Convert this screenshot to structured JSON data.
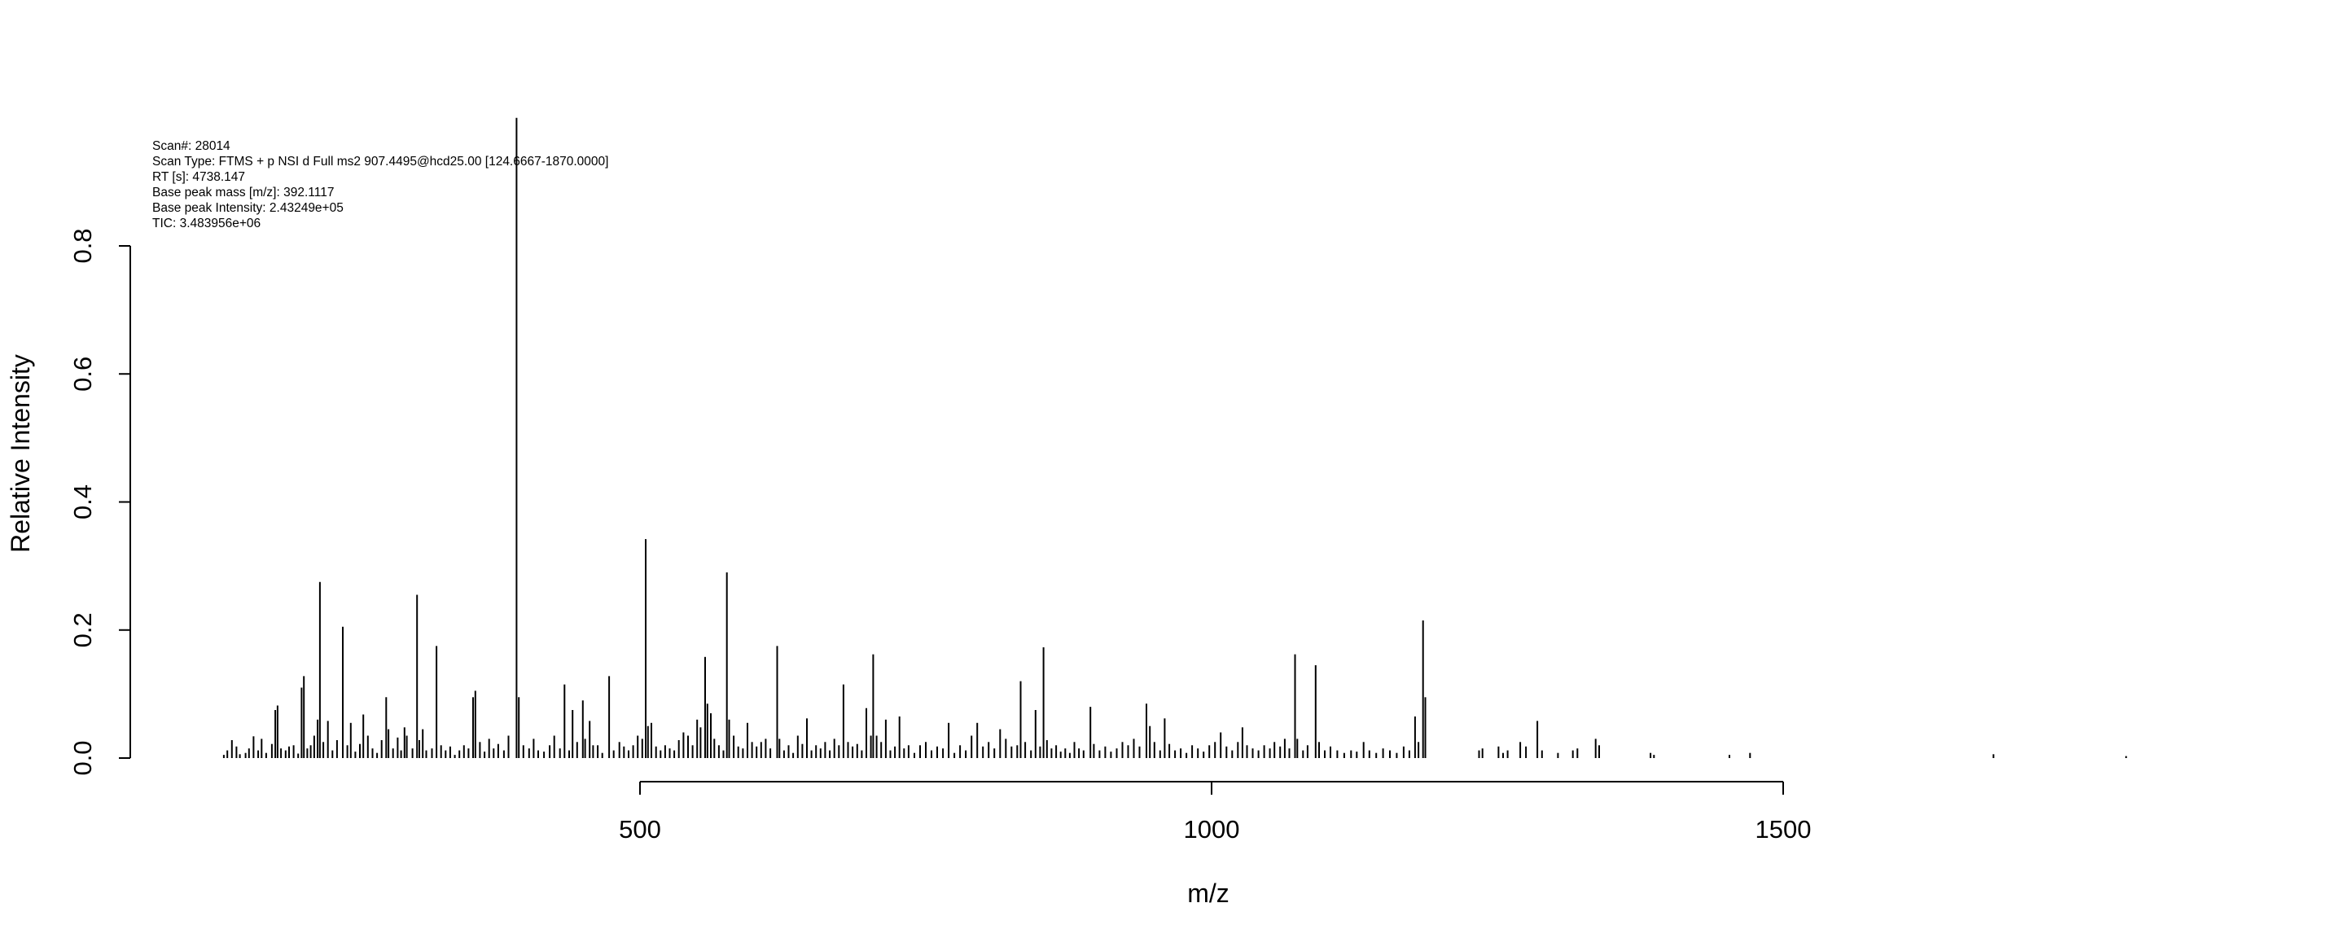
{
  "chart_data": {
    "type": "bar",
    "style": "spectrum-sticks",
    "xlabel": "m/z",
    "ylabel": "Relative Intensity",
    "xlim": [
      132,
      1905
    ],
    "ylim": [
      0,
      0.95
    ],
    "x_ticks": [
      500,
      1000,
      1500
    ],
    "y_ticks": [
      0.0,
      0.2,
      0.4,
      0.6,
      0.8
    ],
    "x_tick_labels": [
      "500",
      "1000",
      "1500"
    ],
    "y_tick_labels": [
      "0.0",
      "0.2",
      "0.4",
      "0.6",
      "0.8"
    ],
    "grid": false,
    "info": [
      {
        "label": "Scan#:",
        "value": "28014"
      },
      {
        "label": "Scan Type:",
        "value": "FTMS + p NSI d Full ms2 907.4495@hcd25.00 [124.6667-1870.0000]"
      },
      {
        "label": "RT [s]:",
        "value": "4738.147"
      },
      {
        "label": "Base peak mass [m/z]:",
        "value": "392.1117"
      },
      {
        "label": "Base peak Intensity:",
        "value": "2.43249e+05"
      },
      {
        "label": "TIC:",
        "value": "3.483956e+06"
      }
    ],
    "peaks": [
      [
        136,
        0.005
      ],
      [
        139,
        0.012
      ],
      [
        143,
        0.028
      ],
      [
        147,
        0.018
      ],
      [
        150,
        0.006
      ],
      [
        155,
        0.008
      ],
      [
        158,
        0.015
      ],
      [
        162,
        0.034
      ],
      [
        166,
        0.012
      ],
      [
        169,
        0.03
      ],
      [
        173,
        0.008
      ],
      [
        178,
        0.022
      ],
      [
        181,
        0.075
      ],
      [
        183,
        0.082
      ],
      [
        186,
        0.015
      ],
      [
        190,
        0.012
      ],
      [
        193,
        0.018
      ],
      [
        197,
        0.02
      ],
      [
        201,
        0.007
      ],
      [
        204,
        0.11
      ],
      [
        206,
        0.128
      ],
      [
        209,
        0.015
      ],
      [
        212,
        0.02
      ],
      [
        215,
        0.035
      ],
      [
        218,
        0.06
      ],
      [
        220,
        0.275
      ],
      [
        223,
        0.025
      ],
      [
        227,
        0.058
      ],
      [
        231,
        0.012
      ],
      [
        235,
        0.028
      ],
      [
        240,
        0.205
      ],
      [
        244,
        0.02
      ],
      [
        247,
        0.055
      ],
      [
        251,
        0.01
      ],
      [
        255,
        0.022
      ],
      [
        258,
        0.068
      ],
      [
        262,
        0.035
      ],
      [
        266,
        0.015
      ],
      [
        270,
        0.008
      ],
      [
        274,
        0.028
      ],
      [
        278,
        0.095
      ],
      [
        280,
        0.045
      ],
      [
        284,
        0.015
      ],
      [
        288,
        0.032
      ],
      [
        291,
        0.012
      ],
      [
        294,
        0.048
      ],
      [
        296,
        0.035
      ],
      [
        301,
        0.015
      ],
      [
        305,
        0.255
      ],
      [
        307,
        0.028
      ],
      [
        310,
        0.045
      ],
      [
        313,
        0.012
      ],
      [
        318,
        0.015
      ],
      [
        322,
        0.175
      ],
      [
        326,
        0.02
      ],
      [
        330,
        0.012
      ],
      [
        334,
        0.018
      ],
      [
        338,
        0.005
      ],
      [
        342,
        0.012
      ],
      [
        346,
        0.02
      ],
      [
        350,
        0.015
      ],
      [
        354,
        0.095
      ],
      [
        356,
        0.105
      ],
      [
        360,
        0.025
      ],
      [
        364,
        0.01
      ],
      [
        368,
        0.03
      ],
      [
        372,
        0.015
      ],
      [
        376,
        0.022
      ],
      [
        381,
        0.012
      ],
      [
        385,
        0.035
      ],
      [
        392,
        1.0
      ],
      [
        394,
        0.095
      ],
      [
        398,
        0.02
      ],
      [
        403,
        0.015
      ],
      [
        407,
        0.03
      ],
      [
        411,
        0.012
      ],
      [
        416,
        0.01
      ],
      [
        421,
        0.02
      ],
      [
        425,
        0.035
      ],
      [
        430,
        0.015
      ],
      [
        434,
        0.115
      ],
      [
        438,
        0.012
      ],
      [
        441,
        0.075
      ],
      [
        445,
        0.025
      ],
      [
        450,
        0.09
      ],
      [
        452,
        0.03
      ],
      [
        456,
        0.058
      ],
      [
        459,
        0.02
      ],
      [
        463,
        0.02
      ],
      [
        467,
        0.008
      ],
      [
        473,
        0.128
      ],
      [
        477,
        0.012
      ],
      [
        482,
        0.025
      ],
      [
        486,
        0.018
      ],
      [
        490,
        0.012
      ],
      [
        494,
        0.02
      ],
      [
        498,
        0.035
      ],
      [
        502,
        0.03
      ],
      [
        505,
        0.342
      ],
      [
        507,
        0.05
      ],
      [
        510,
        0.055
      ],
      [
        514,
        0.018
      ],
      [
        518,
        0.012
      ],
      [
        522,
        0.02
      ],
      [
        526,
        0.015
      ],
      [
        530,
        0.012
      ],
      [
        534,
        0.028
      ],
      [
        538,
        0.04
      ],
      [
        542,
        0.035
      ],
      [
        546,
        0.02
      ],
      [
        550,
        0.06
      ],
      [
        553,
        0.048
      ],
      [
        557,
        0.158
      ],
      [
        559,
        0.085
      ],
      [
        562,
        0.07
      ],
      [
        565,
        0.03
      ],
      [
        569,
        0.02
      ],
      [
        573,
        0.012
      ],
      [
        576,
        0.29
      ],
      [
        578,
        0.06
      ],
      [
        582,
        0.035
      ],
      [
        586,
        0.018
      ],
      [
        590,
        0.015
      ],
      [
        594,
        0.055
      ],
      [
        598,
        0.025
      ],
      [
        602,
        0.018
      ],
      [
        606,
        0.025
      ],
      [
        610,
        0.03
      ],
      [
        614,
        0.015
      ],
      [
        620,
        0.175
      ],
      [
        622,
        0.03
      ],
      [
        626,
        0.012
      ],
      [
        630,
        0.02
      ],
      [
        634,
        0.008
      ],
      [
        638,
        0.035
      ],
      [
        642,
        0.022
      ],
      [
        646,
        0.062
      ],
      [
        650,
        0.012
      ],
      [
        654,
        0.02
      ],
      [
        658,
        0.015
      ],
      [
        662,
        0.025
      ],
      [
        666,
        0.012
      ],
      [
        670,
        0.03
      ],
      [
        674,
        0.02
      ],
      [
        678,
        0.115
      ],
      [
        682,
        0.025
      ],
      [
        686,
        0.018
      ],
      [
        690,
        0.022
      ],
      [
        694,
        0.012
      ],
      [
        698,
        0.078
      ],
      [
        702,
        0.035
      ],
      [
        704,
        0.162
      ],
      [
        707,
        0.035
      ],
      [
        711,
        0.025
      ],
      [
        715,
        0.06
      ],
      [
        719,
        0.012
      ],
      [
        723,
        0.018
      ],
      [
        727,
        0.065
      ],
      [
        731,
        0.015
      ],
      [
        735,
        0.02
      ],
      [
        740,
        0.008
      ],
      [
        745,
        0.02
      ],
      [
        750,
        0.025
      ],
      [
        755,
        0.012
      ],
      [
        760,
        0.018
      ],
      [
        765,
        0.015
      ],
      [
        770,
        0.055
      ],
      [
        775,
        0.008
      ],
      [
        780,
        0.02
      ],
      [
        785,
        0.012
      ],
      [
        790,
        0.035
      ],
      [
        795,
        0.055
      ],
      [
        800,
        0.018
      ],
      [
        805,
        0.025
      ],
      [
        810,
        0.015
      ],
      [
        815,
        0.045
      ],
      [
        820,
        0.03
      ],
      [
        825,
        0.018
      ],
      [
        830,
        0.02
      ],
      [
        833,
        0.12
      ],
      [
        837,
        0.025
      ],
      [
        842,
        0.012
      ],
      [
        846,
        0.075
      ],
      [
        850,
        0.018
      ],
      [
        853,
        0.173
      ],
      [
        856,
        0.028
      ],
      [
        860,
        0.015
      ],
      [
        864,
        0.02
      ],
      [
        868,
        0.01
      ],
      [
        872,
        0.015
      ],
      [
        876,
        0.008
      ],
      [
        880,
        0.025
      ],
      [
        884,
        0.015
      ],
      [
        888,
        0.012
      ],
      [
        894,
        0.08
      ],
      [
        897,
        0.022
      ],
      [
        902,
        0.012
      ],
      [
        907,
        0.018
      ],
      [
        912,
        0.01
      ],
      [
        917,
        0.015
      ],
      [
        922,
        0.025
      ],
      [
        927,
        0.02
      ],
      [
        932,
        0.03
      ],
      [
        937,
        0.018
      ],
      [
        943,
        0.085
      ],
      [
        946,
        0.05
      ],
      [
        950,
        0.025
      ],
      [
        955,
        0.012
      ],
      [
        959,
        0.062
      ],
      [
        963,
        0.022
      ],
      [
        968,
        0.012
      ],
      [
        973,
        0.015
      ],
      [
        978,
        0.008
      ],
      [
        983,
        0.02
      ],
      [
        988,
        0.015
      ],
      [
        993,
        0.01
      ],
      [
        998,
        0.02
      ],
      [
        1003,
        0.025
      ],
      [
        1008,
        0.04
      ],
      [
        1013,
        0.018
      ],
      [
        1018,
        0.012
      ],
      [
        1023,
        0.025
      ],
      [
        1027,
        0.048
      ],
      [
        1031,
        0.02
      ],
      [
        1036,
        0.015
      ],
      [
        1041,
        0.012
      ],
      [
        1046,
        0.02
      ],
      [
        1051,
        0.015
      ],
      [
        1055,
        0.025
      ],
      [
        1060,
        0.018
      ],
      [
        1064,
        0.03
      ],
      [
        1068,
        0.015
      ],
      [
        1073,
        0.162
      ],
      [
        1075,
        0.03
      ],
      [
        1080,
        0.012
      ],
      [
        1084,
        0.02
      ],
      [
        1091,
        0.145
      ],
      [
        1094,
        0.025
      ],
      [
        1099,
        0.012
      ],
      [
        1104,
        0.018
      ],
      [
        1110,
        0.012
      ],
      [
        1116,
        0.008
      ],
      [
        1122,
        0.012
      ],
      [
        1127,
        0.01
      ],
      [
        1133,
        0.025
      ],
      [
        1138,
        0.012
      ],
      [
        1144,
        0.008
      ],
      [
        1150,
        0.015
      ],
      [
        1156,
        0.012
      ],
      [
        1162,
        0.008
      ],
      [
        1168,
        0.018
      ],
      [
        1173,
        0.012
      ],
      [
        1178,
        0.065
      ],
      [
        1181,
        0.025
      ],
      [
        1185,
        0.215
      ],
      [
        1187,
        0.095
      ],
      [
        1234,
        0.012
      ],
      [
        1237,
        0.015
      ],
      [
        1251,
        0.018
      ],
      [
        1255,
        0.008
      ],
      [
        1259,
        0.012
      ],
      [
        1270,
        0.025
      ],
      [
        1275,
        0.018
      ],
      [
        1285,
        0.058
      ],
      [
        1289,
        0.012
      ],
      [
        1303,
        0.008
      ],
      [
        1316,
        0.012
      ],
      [
        1320,
        0.015
      ],
      [
        1336,
        0.03
      ],
      [
        1339,
        0.02
      ],
      [
        1384,
        0.008
      ],
      [
        1387,
        0.005
      ],
      [
        1453,
        0.005
      ],
      [
        1471,
        0.008
      ],
      [
        1684,
        0.006
      ],
      [
        1800,
        0.003
      ]
    ]
  }
}
